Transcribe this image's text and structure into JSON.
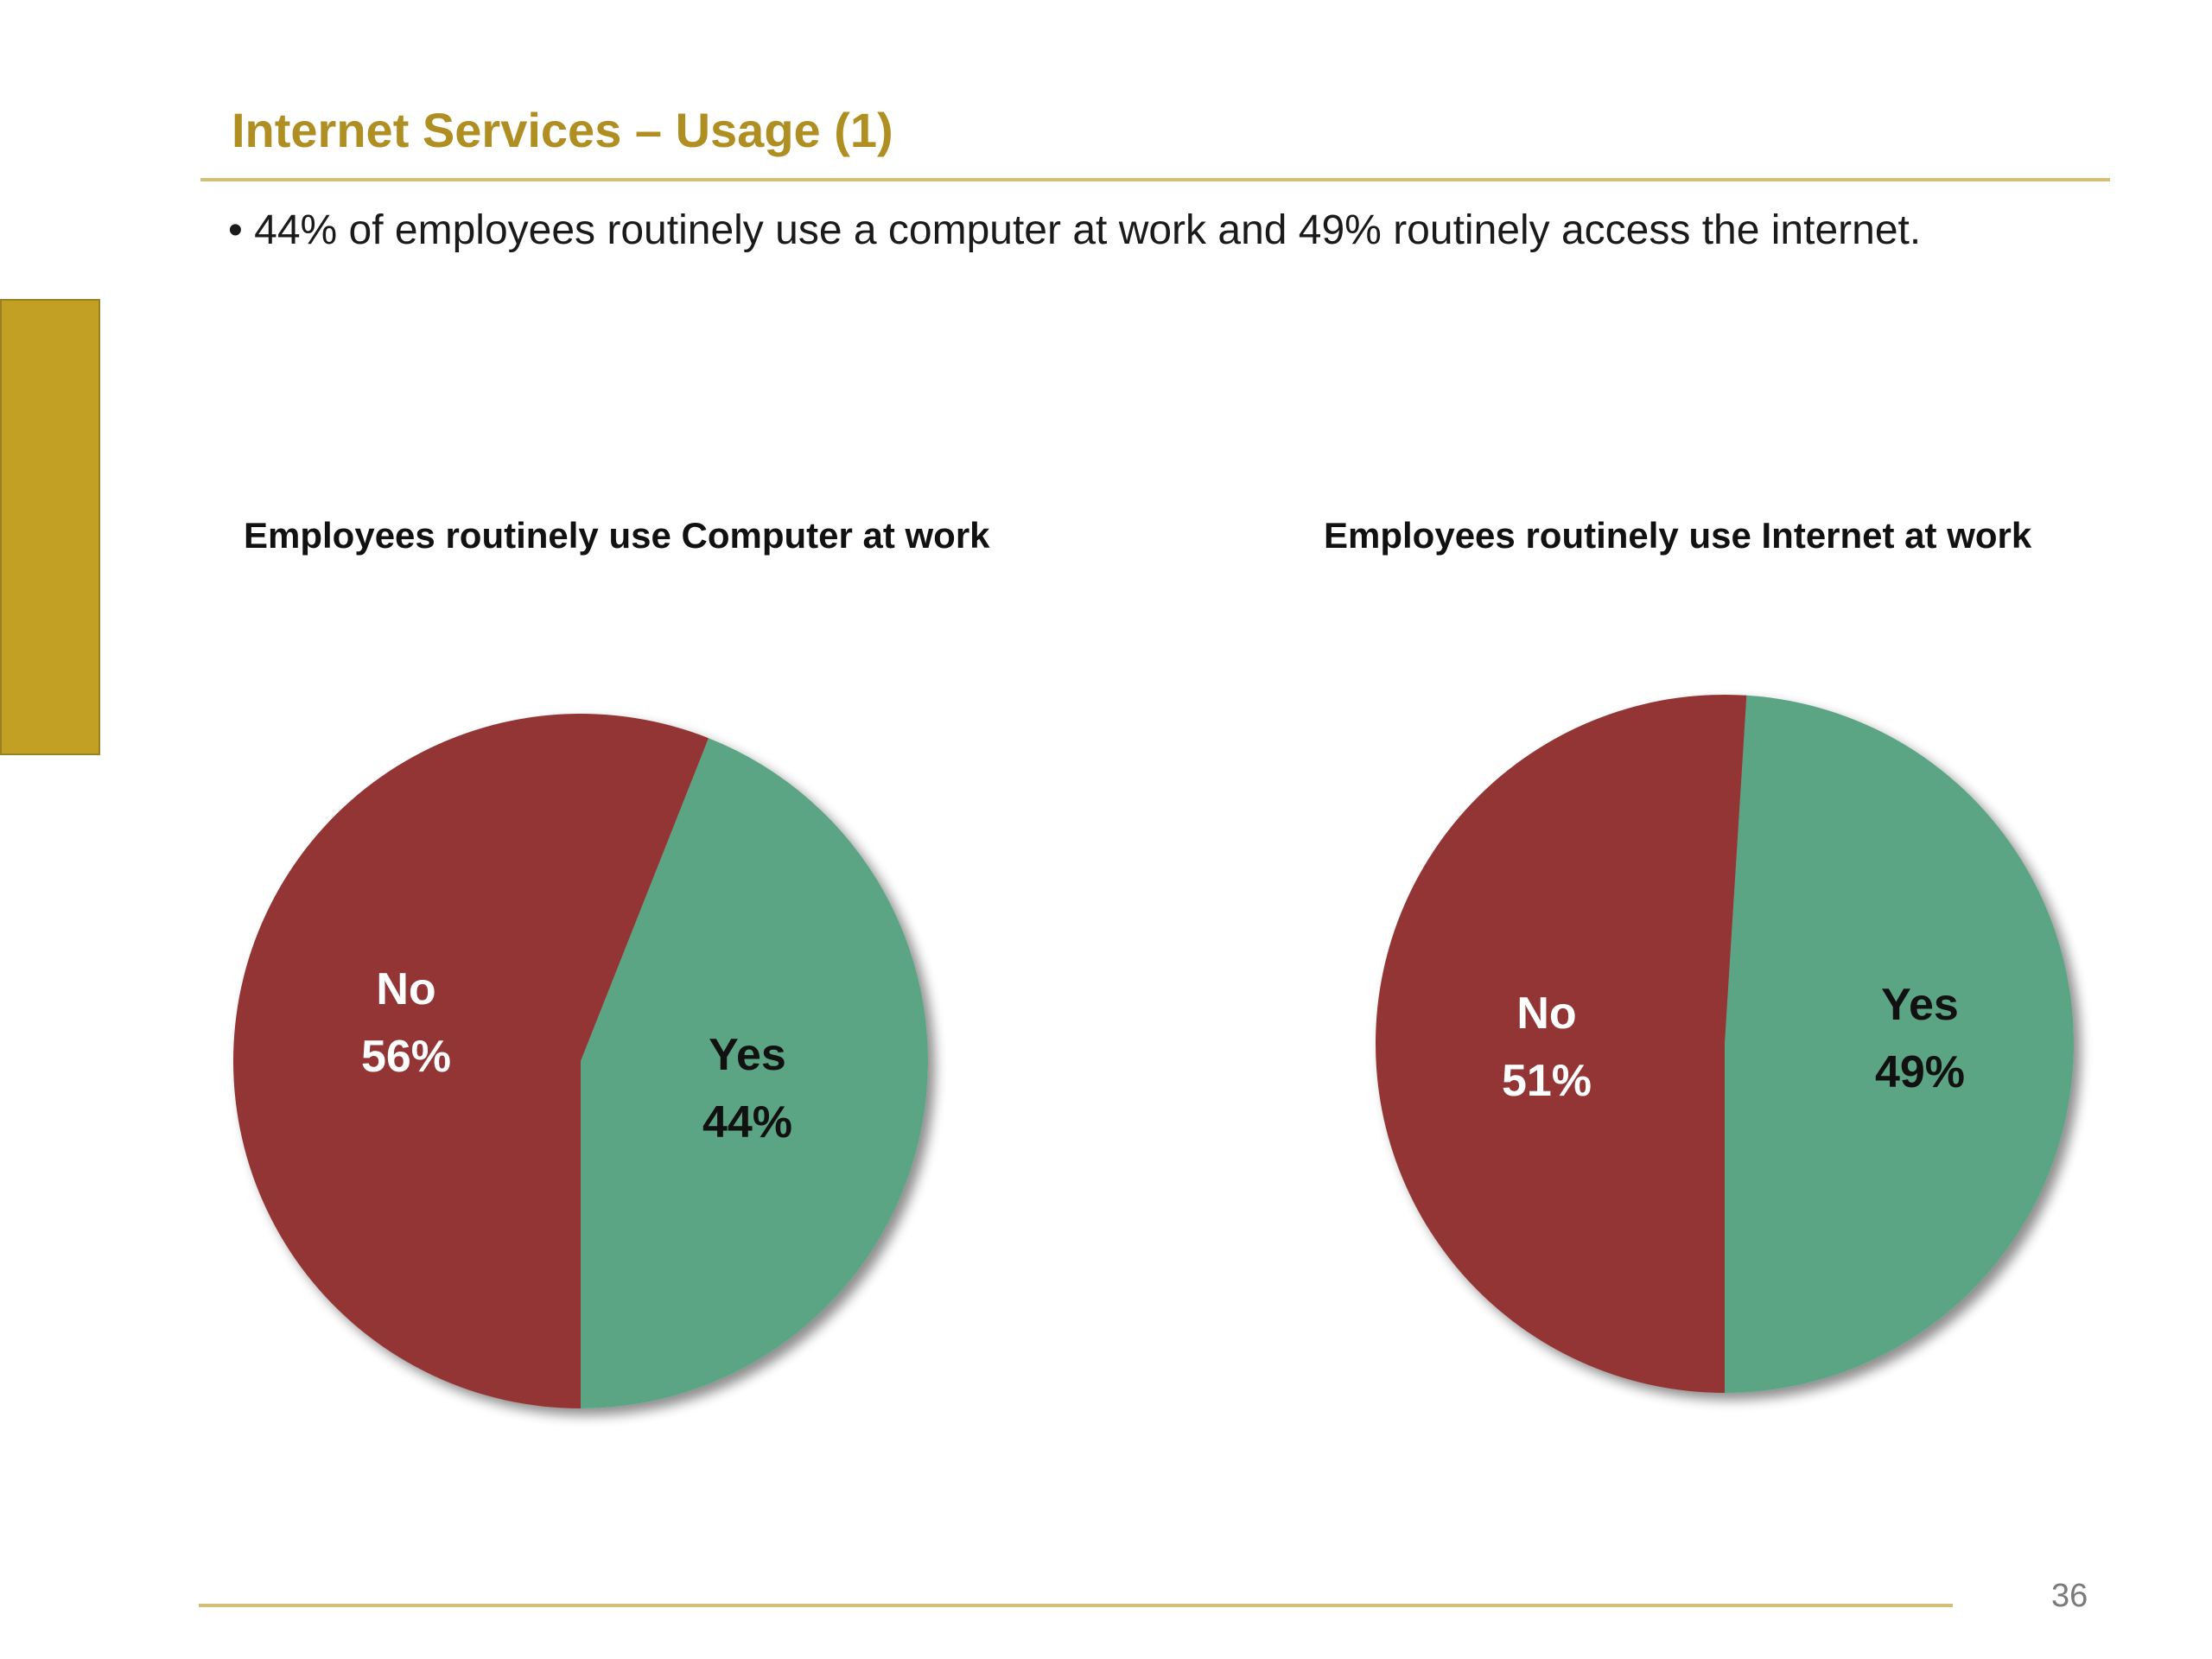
{
  "slide": {
    "title": "Internet Services – Usage (1)",
    "bullet": "• 44% of employees routinely use a computer at work and 49% routinely access the internet.",
    "page_number": "36",
    "colors": {
      "title": "#B08F22",
      "accent_bar": "#C1A023",
      "rule": "#D3BE7A"
    }
  },
  "chart_data": [
    {
      "type": "pie",
      "title": "Employees routinely use Computer at work",
      "slices": [
        {
          "label": "Yes",
          "percent_label": "44%",
          "value": 44,
          "color": "#5BA584"
        },
        {
          "label": "No",
          "percent_label": "56%",
          "value": 56,
          "color": "#943535"
        }
      ]
    },
    {
      "type": "pie",
      "title": "Employees routinely use Internet at work",
      "slices": [
        {
          "label": "Yes",
          "percent_label": "49%",
          "value": 49,
          "color": "#5BA584"
        },
        {
          "label": "No",
          "percent_label": "51%",
          "value": 51,
          "color": "#943535"
        }
      ]
    }
  ]
}
